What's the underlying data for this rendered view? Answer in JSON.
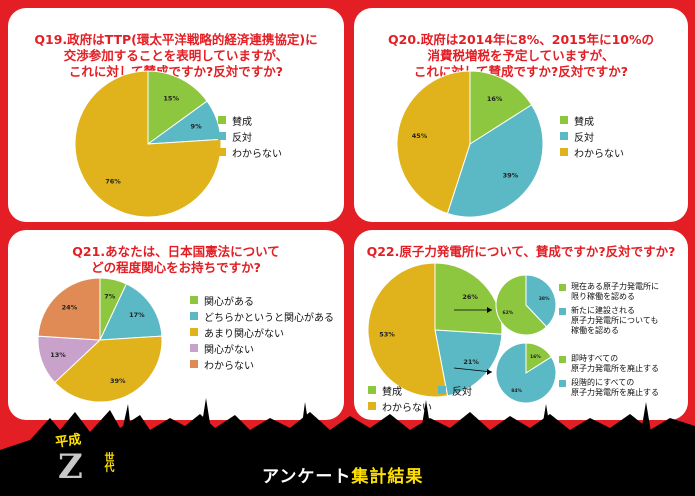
{
  "colors": {
    "yes": "#8dc63f",
    "no": "#5bb8c5",
    "unknown": "#e0b31c",
    "interested": "#8dc63f",
    "somewhat": "#5bb8c5",
    "notmuch": "#e0b31c",
    "notinterested": "#c9a2cc",
    "unsure": "#e08a56",
    "red": "#e31e24"
  },
  "footer": {
    "title_main": "アンケート",
    "title_sub": "集計結果"
  },
  "brand": {
    "top": "平成",
    "z": "Z",
    "side": "世代"
  },
  "chart_data": [
    {
      "id": "q19",
      "type": "pie",
      "title": "Q19.政府はTTP(環太平洋戦略的経済連携協定)に\n交渉参加することを表明していますが、\nこれに対して賛成ですか?反対ですか?",
      "slices": [
        {
          "label": "賛成",
          "value": 15,
          "text": "15%"
        },
        {
          "label": "反対",
          "value": 9,
          "text": "9%"
        },
        {
          "label": "わからない",
          "value": 76,
          "text": "76%"
        }
      ]
    },
    {
      "id": "q20",
      "type": "pie",
      "title": "Q20.政府は2014年に8%、2015年に10%の\n消費税増税を予定していますが、\nこれに対して賛成ですか?反対ですか?",
      "slices": [
        {
          "label": "賛成",
          "value": 16,
          "text": "16%"
        },
        {
          "label": "反対",
          "value": 39,
          "text": "39%"
        },
        {
          "label": "わからない",
          "value": 45,
          "text": "45%"
        }
      ]
    },
    {
      "id": "q21",
      "type": "pie",
      "title": "Q21.あなたは、日本国憲法について\nどの程度関心をお持ちですか?",
      "slices": [
        {
          "label": "関心がある",
          "value": 7,
          "text": "7%"
        },
        {
          "label": "どちらかというと関心がある",
          "value": 17,
          "text": "17%"
        },
        {
          "label": "あまり関心がない",
          "value": 39,
          "text": "39%"
        },
        {
          "label": "関心がない",
          "value": 13,
          "text": "13%"
        },
        {
          "label": "わからない",
          "value": 24,
          "text": "24%"
        }
      ]
    },
    {
      "id": "q22",
      "type": "pie",
      "title": "Q22.原子力発電所について、賛成ですか?反対ですか?",
      "slices": [
        {
          "label": "賛成",
          "value": 26,
          "text": "26%"
        },
        {
          "label": "反対",
          "value": 21,
          "text": "21%"
        },
        {
          "label": "わからない",
          "value": 53,
          "text": "53%"
        }
      ],
      "sub_yes": {
        "slices": [
          {
            "label": "現在ある原子力発電所に\n限り稼働を認める",
            "value": 38,
            "text": "38%"
          },
          {
            "label": "新たに建設される\n原子力発電所についても\n稼働を認める",
            "value": 62,
            "text": "62%"
          }
        ]
      },
      "sub_no": {
        "slices": [
          {
            "label": "即時すべての\n原子力発電所を廃止する",
            "value": 16,
            "text": "16%"
          },
          {
            "label": "段階的にすべての\n原子力発電所を廃止する",
            "value": 84,
            "text": "84%"
          }
        ]
      }
    }
  ]
}
